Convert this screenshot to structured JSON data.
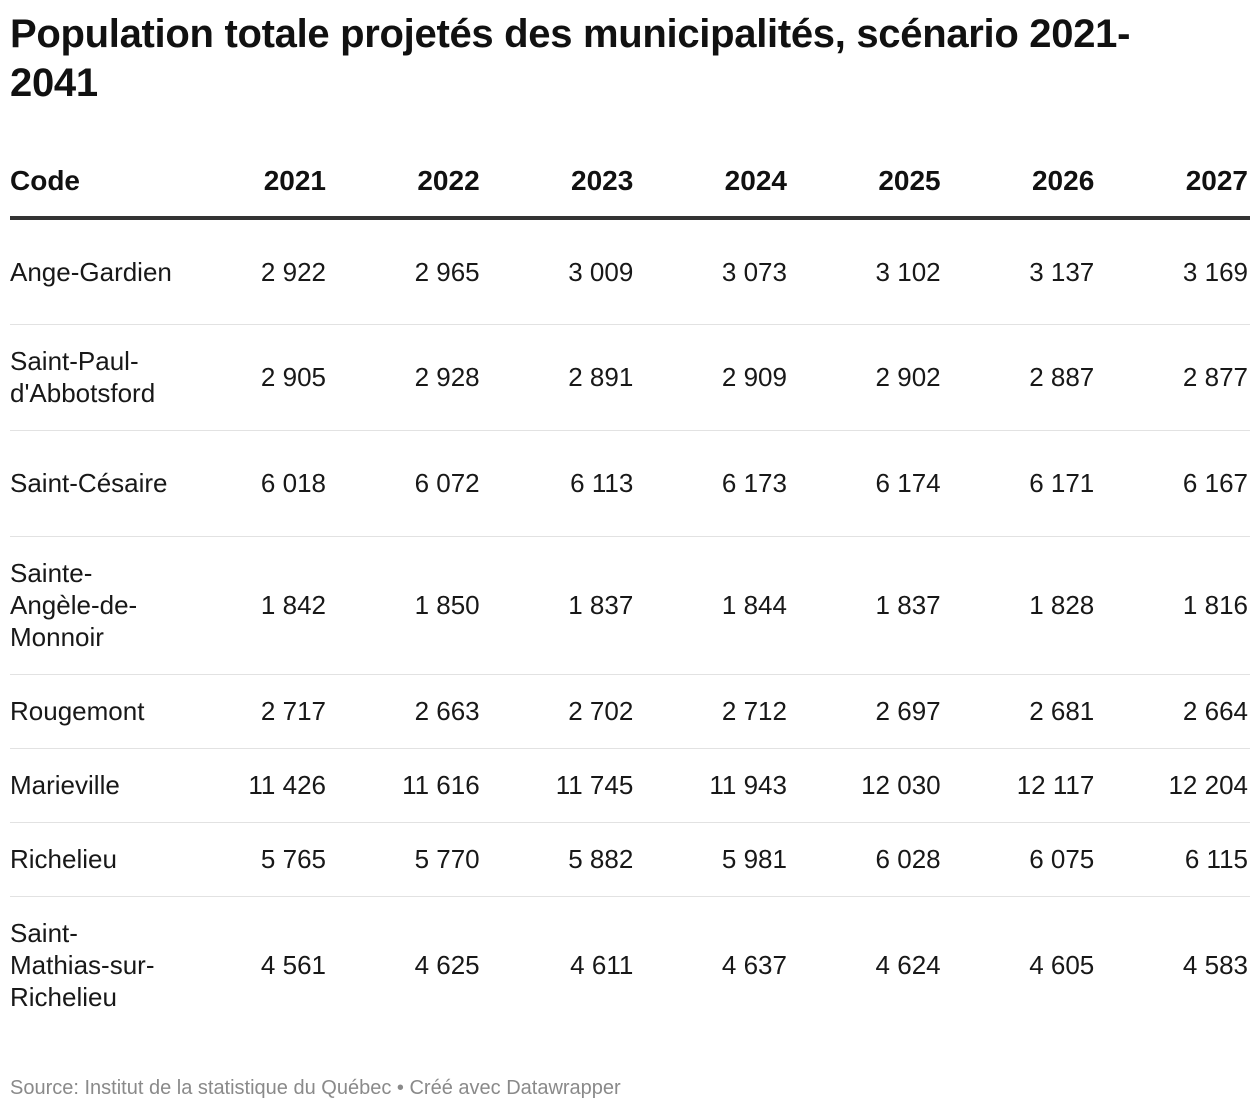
{
  "title": "Population totale projetés des municipalités, scénario 2021-2041",
  "footer": {
    "source": "Source: Institut de la statistique du Québec",
    "separator": "•",
    "credit": "Créé avec Datawrapper"
  },
  "chart_data": {
    "type": "table",
    "title": "Population totale projetés des municipalités, scénario 2021-2041",
    "columns": [
      "Code",
      "2021",
      "2022",
      "2023",
      "2024",
      "2025",
      "2026",
      "2027"
    ],
    "rows": [
      {
        "code": "Ange-Gardien",
        "values": [
          "2 922",
          "2 965",
          "3 009",
          "3 073",
          "3 102",
          "3 137",
          "3 169"
        ]
      },
      {
        "code": "Saint-Paul-d'Abbotsford",
        "values": [
          "2 905",
          "2 928",
          "2 891",
          "2 909",
          "2 902",
          "2 887",
          "2 877"
        ]
      },
      {
        "code": "Saint-Césaire",
        "values": [
          "6 018",
          "6 072",
          "6 113",
          "6 173",
          "6 174",
          "6 171",
          "6 167"
        ]
      },
      {
        "code": "Sainte-Angèle-de-Monnoir",
        "values": [
          "1 842",
          "1 850",
          "1 837",
          "1 844",
          "1 837",
          "1 828",
          "1 816"
        ]
      },
      {
        "code": "Rougemont",
        "values": [
          "2 717",
          "2 663",
          "2 702",
          "2 712",
          "2 697",
          "2 681",
          "2 664"
        ]
      },
      {
        "code": "Marieville",
        "values": [
          "11 426",
          "11 616",
          "11 745",
          "11 943",
          "12 030",
          "12 117",
          "12 204"
        ]
      },
      {
        "code": "Richelieu",
        "values": [
          "5 765",
          "5 770",
          "5 882",
          "5 981",
          "6 028",
          "6 075",
          "6 115"
        ]
      },
      {
        "code": "Saint-Mathias-sur-Richelieu",
        "values": [
          "4 561",
          "4 625",
          "4 611",
          "4 637",
          "4 624",
          "4 605",
          "4 583"
        ]
      }
    ],
    "source": "Source: Institut de la statistique du Québec"
  }
}
